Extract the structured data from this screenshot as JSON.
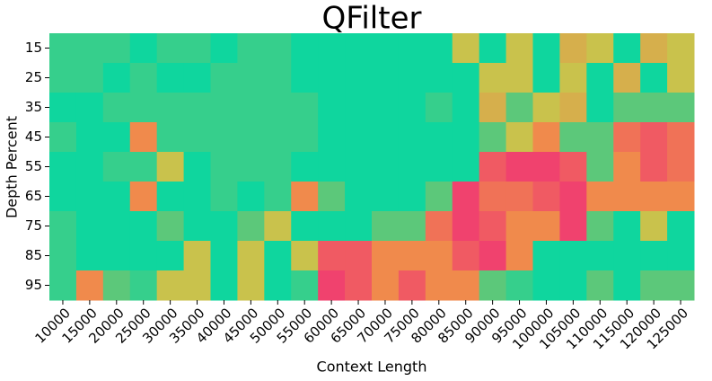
{
  "chart_data": {
    "type": "heatmap",
    "title": "QFilter",
    "x_label": "Context Length",
    "y_label": "Depth Percent",
    "x": [
      10000,
      15000,
      20000,
      25000,
      30000,
      35000,
      40000,
      45000,
      50000,
      55000,
      60000,
      65000,
      70000,
      75000,
      80000,
      85000,
      90000,
      95000,
      100000,
      105000,
      110000,
      115000,
      120000,
      125000
    ],
    "y": [
      15,
      25,
      35,
      45,
      55,
      65,
      75,
      85,
      95
    ],
    "z": [
      [
        9,
        9,
        9,
        10,
        9,
        9,
        10,
        9,
        9,
        10,
        10,
        10,
        10,
        10,
        10,
        6,
        10,
        6,
        10,
        5,
        6,
        10,
        5,
        6
      ],
      [
        9,
        9,
        10,
        9,
        10,
        10,
        9,
        9,
        9,
        10,
        10,
        10,
        10,
        10,
        10,
        10,
        6,
        6,
        10,
        6,
        10,
        5,
        10,
        6
      ],
      [
        10,
        10,
        9,
        9,
        9,
        9,
        9,
        9,
        9,
        9,
        10,
        10,
        10,
        10,
        9,
        10,
        5,
        8,
        6,
        5,
        10,
        8,
        8,
        8
      ],
      [
        9,
        10,
        10,
        3,
        9,
        9,
        9,
        9,
        9,
        9,
        10,
        10,
        10,
        10,
        10,
        10,
        8,
        6,
        3,
        8,
        8,
        2,
        1,
        2
      ],
      [
        10,
        10,
        9,
        9,
        6,
        10,
        9,
        9,
        9,
        10,
        10,
        10,
        10,
        10,
        10,
        10,
        1,
        0,
        0,
        1,
        8,
        3,
        1,
        2
      ],
      [
        10,
        10,
        10,
        3,
        10,
        10,
        9,
        10,
        9,
        3,
        8,
        10,
        10,
        10,
        8,
        0,
        2,
        2,
        1,
        0,
        3,
        3,
        3,
        3
      ],
      [
        9,
        10,
        10,
        10,
        8,
        10,
        10,
        8,
        6,
        10,
        10,
        10,
        8,
        8,
        2,
        0,
        1,
        3,
        3,
        0,
        8,
        10,
        6,
        10
      ],
      [
        9,
        10,
        10,
        10,
        10,
        6,
        10,
        6,
        10,
        6,
        1,
        1,
        3,
        3,
        3,
        1,
        0,
        3,
        10,
        10,
        10,
        10,
        10,
        10
      ],
      [
        9,
        3,
        8,
        9,
        6,
        6,
        10,
        6,
        10,
        9,
        0,
        1,
        3,
        1,
        3,
        3,
        8,
        9,
        10,
        10,
        8,
        10,
        8,
        8
      ]
    ],
    "color_stops": [
      {
        "value": 0,
        "color": "#f0426e"
      },
      {
        "value": 3,
        "color": "#f08a4c"
      },
      {
        "value": 6,
        "color": "#c9c24c"
      },
      {
        "value": 8,
        "color": "#5cc87a"
      },
      {
        "value": 10,
        "color": "#0fd69e"
      }
    ]
  }
}
